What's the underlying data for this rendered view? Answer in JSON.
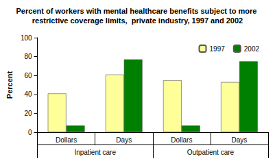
{
  "chart_data": {
    "type": "bar",
    "title": "Percent of workers with mental healthcare benefits subject to more restrictive coverage limits,  private industry, 1997 and 2002",
    "y_label": "Percent",
    "categories": [
      "Dollars",
      "Days",
      "Dollars",
      "Days"
    ],
    "category_groups": [
      "Inpatient care",
      "Inpatient care",
      "Outpatient care",
      "Outpatient care"
    ],
    "series": [
      {
        "name": "1997",
        "color": "#ffff99",
        "values": [
          41,
          61,
          55,
          53
        ]
      },
      {
        "name": "2002",
        "color": "#008000",
        "values": [
          7,
          77,
          7,
          75
        ]
      }
    ],
    "ylim": [
      0,
      100
    ],
    "yticks": [
      0,
      20,
      40,
      60,
      80,
      100
    ],
    "grid": false,
    "legend": "top-right"
  }
}
